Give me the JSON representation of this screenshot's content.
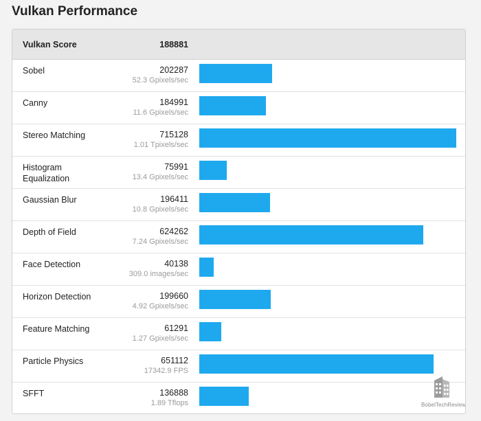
{
  "title": "Vulkan Performance",
  "header": {
    "label": "Vulkan Score",
    "score": "188881"
  },
  "colors": {
    "bar": "#1ea9ef",
    "header_bg": "#e6e6e6",
    "page_bg": "#f3f3f3"
  },
  "watermark": {
    "text": "BobelTechReviews",
    "icon": "building-logo-icon"
  },
  "chart_data": {
    "type": "bar",
    "orientation": "horizontal",
    "title": "Vulkan Performance",
    "categories": [
      "Sobel",
      "Canny",
      "Stereo Matching",
      "Histogram Equalization",
      "Gaussian Blur",
      "Depth of Field",
      "Face Detection",
      "Horizon Detection",
      "Feature Matching",
      "Particle Physics",
      "SFFT"
    ],
    "values": [
      202287,
      184991,
      715128,
      75991,
      196411,
      624262,
      40138,
      199660,
      61291,
      651112,
      136888
    ],
    "series": [
      {
        "values": [
          202287,
          184991,
          715128,
          75991,
          196411,
          624262,
          40138,
          199660,
          61291,
          651112,
          136888
        ]
      }
    ],
    "score_labels": [
      "202287",
      "184991",
      "715128",
      "75991",
      "196411",
      "624262",
      "40138",
      "199660",
      "61291",
      "651112",
      "136888"
    ],
    "throughput_labels": [
      "52.3 Gpixels/sec",
      "11.6 Gpixels/sec",
      "1.01 Tpixels/sec",
      "13.4 Gpixels/sec",
      "10.8 Gpixels/sec",
      "7.24 Gpixels/sec",
      "309.0 images/sec",
      "4.92 Gpixels/sec",
      "1.27 Gpixels/sec",
      "17342.9 FPS",
      "1.89 Tflops"
    ],
    "xlim": [
      0,
      715128
    ],
    "grid": false,
    "legend": "none",
    "xlabel": "",
    "ylabel": ""
  }
}
